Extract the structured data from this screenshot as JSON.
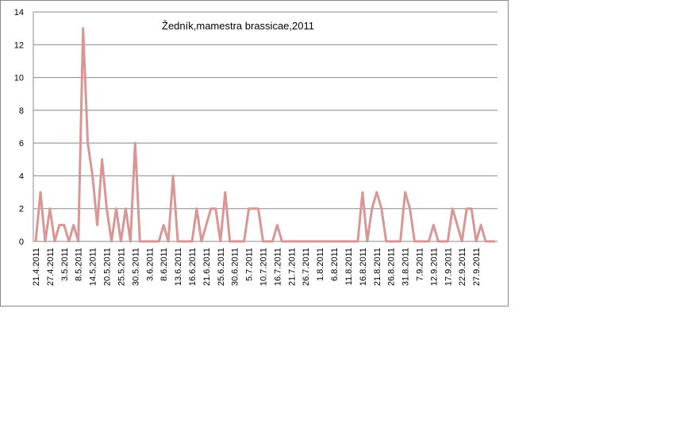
{
  "chart_data": {
    "type": "line",
    "title": "Žedník,mamestra brassicae,2011",
    "categories": [
      "21.4.2011",
      null,
      null,
      "27.4.2011",
      null,
      null,
      "3.5.2011",
      null,
      null,
      "8.5.2011",
      null,
      null,
      "14.5.2011",
      null,
      null,
      "20.5.2011",
      null,
      null,
      "25.5.2011",
      null,
      null,
      "30.5.2011",
      null,
      null,
      "3.6.2011",
      null,
      null,
      "8.6.2011",
      null,
      null,
      "13.6.2011",
      null,
      null,
      "16.6.2011",
      null,
      null,
      "21.6.2011",
      null,
      null,
      "25.6.2011",
      null,
      null,
      "30.6.2011",
      null,
      null,
      "5.7.2011",
      null,
      null,
      "10.7.2011",
      null,
      null,
      "16.7.2011",
      null,
      null,
      "21.7.2011",
      null,
      null,
      "26.7.2011",
      null,
      null,
      "1.8.2011",
      null,
      null,
      "6.8.2011",
      null,
      null,
      "11.8.2011",
      null,
      null,
      "16.8.2011",
      null,
      null,
      "21.8.2011",
      null,
      null,
      "26.8.2011",
      null,
      null,
      "31.8.2011",
      null,
      null,
      "7.9.2011",
      null,
      null,
      "12.9.2011",
      null,
      null,
      "17.9.2011",
      null,
      null,
      "22.9.2011",
      null,
      null,
      "27.9.2011",
      null,
      null,
      null,
      null
    ],
    "series": [
      {
        "color": "#d99694",
        "values": [
          0,
          3,
          0,
          2,
          0,
          1,
          1,
          0,
          1,
          0,
          13,
          6,
          4,
          1,
          5,
          2,
          0,
          2,
          0,
          2,
          0,
          6,
          0,
          0,
          0,
          0,
          0,
          1,
          0,
          4,
          0,
          0,
          0,
          0,
          2,
          0,
          1,
          2,
          2,
          0,
          3,
          0,
          0,
          0,
          0,
          2,
          2,
          2,
          0,
          0,
          0,
          1,
          0,
          0,
          0,
          0,
          0,
          0,
          0,
          0,
          0,
          0,
          0,
          0,
          0,
          0,
          0,
          0,
          0,
          3,
          0,
          2,
          3,
          2,
          0,
          0,
          0,
          0,
          3,
          2,
          0,
          0,
          0,
          0,
          1,
          0,
          0,
          0,
          2,
          1,
          0,
          2,
          2,
          0,
          1,
          0,
          0,
          0
        ]
      }
    ],
    "ylim": [
      0,
      14
    ],
    "yticks": [
      0,
      2,
      4,
      6,
      8,
      10,
      12,
      14
    ],
    "grid": true
  }
}
